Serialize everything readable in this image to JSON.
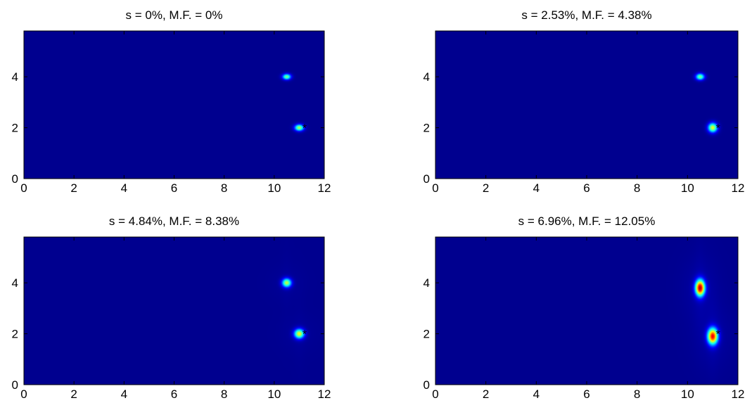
{
  "figure": {
    "title": "",
    "background": "#ffffff",
    "plot_background": "#00008f",
    "colormap": "jet",
    "colormap_stops": [
      "#00008f",
      "#0000ff",
      "#00ffff",
      "#7fff7f",
      "#ffff00",
      "#ff0000",
      "#800000"
    ]
  },
  "chart_data": [
    {
      "type": "heatmap",
      "title": "s = 0%, M.F. = 0%",
      "xlabel": "",
      "ylabel": "",
      "xlim": [
        0,
        12
      ],
      "ylim": [
        0,
        5.8
      ],
      "xticks": [
        "0",
        "2",
        "4",
        "6",
        "8",
        "10",
        "12"
      ],
      "yticks": [
        "0",
        "2",
        "4"
      ],
      "grid": false,
      "peaks": [
        {
          "x": 10.5,
          "y": 4.0,
          "intensity": 0.5,
          "spread_x": 0.12,
          "spread_y": 0.08,
          "halo": 0.0
        },
        {
          "x": 11.0,
          "y": 2.0,
          "intensity": 0.55,
          "spread_x": 0.13,
          "spread_y": 0.09,
          "halo": 0.0
        }
      ],
      "markers": [
        {
          "x": 11.1,
          "y": 2.0,
          "symbol": "*"
        }
      ]
    },
    {
      "type": "heatmap",
      "title": "s = 2.53%, M.F. = 4.38%",
      "xlabel": "",
      "ylabel": "",
      "xlim": [
        0,
        12
      ],
      "ylim": [
        0,
        5.8
      ],
      "xticks": [
        "0",
        "2",
        "4",
        "6",
        "8",
        "10",
        "12"
      ],
      "yticks": [
        "0",
        "2",
        "4"
      ],
      "grid": false,
      "peaks": [
        {
          "x": 10.5,
          "y": 4.0,
          "intensity": 0.5,
          "spread_x": 0.12,
          "spread_y": 0.09,
          "halo": 0.0
        },
        {
          "x": 11.0,
          "y": 2.0,
          "intensity": 0.6,
          "spread_x": 0.13,
          "spread_y": 0.13,
          "halo": 0.0
        }
      ],
      "markers": [
        {
          "x": 11.1,
          "y": 2.0,
          "symbol": "*"
        }
      ]
    },
    {
      "type": "heatmap",
      "title": "s = 4.84%, M.F. = 8.38%",
      "xlabel": "",
      "ylabel": "",
      "xlim": [
        0,
        12
      ],
      "ylim": [
        0,
        5.8
      ],
      "xticks": [
        "0",
        "2",
        "4",
        "6",
        "8",
        "10",
        "12"
      ],
      "yticks": [
        "0",
        "2",
        "4"
      ],
      "grid": false,
      "peaks": [
        {
          "x": 10.5,
          "y": 4.0,
          "intensity": 0.55,
          "spread_x": 0.13,
          "spread_y": 0.12,
          "halo": 0.15
        },
        {
          "x": 11.0,
          "y": 2.0,
          "intensity": 0.6,
          "spread_x": 0.14,
          "spread_y": 0.13,
          "halo": 0.15
        }
      ],
      "markers": [
        {
          "x": 11.1,
          "y": 2.0,
          "symbol": "*"
        }
      ]
    },
    {
      "type": "heatmap",
      "title": "s = 6.96%, M.F. = 12.05%",
      "xlabel": "",
      "ylabel": "",
      "xlim": [
        0,
        12
      ],
      "ylim": [
        0,
        5.8
      ],
      "xticks": [
        "0",
        "2",
        "4",
        "6",
        "8",
        "10",
        "12"
      ],
      "yticks": [
        "0",
        "2",
        "4"
      ],
      "grid": false,
      "peaks": [
        {
          "x": 10.5,
          "y": 3.8,
          "intensity": 0.92,
          "spread_x": 0.13,
          "spread_y": 0.22,
          "halo": 0.35
        },
        {
          "x": 11.0,
          "y": 1.9,
          "intensity": 0.85,
          "spread_x": 0.14,
          "spread_y": 0.22,
          "halo": 0.35
        }
      ],
      "markers": [
        {
          "x": 11.1,
          "y": 2.0,
          "symbol": "*"
        }
      ]
    }
  ]
}
